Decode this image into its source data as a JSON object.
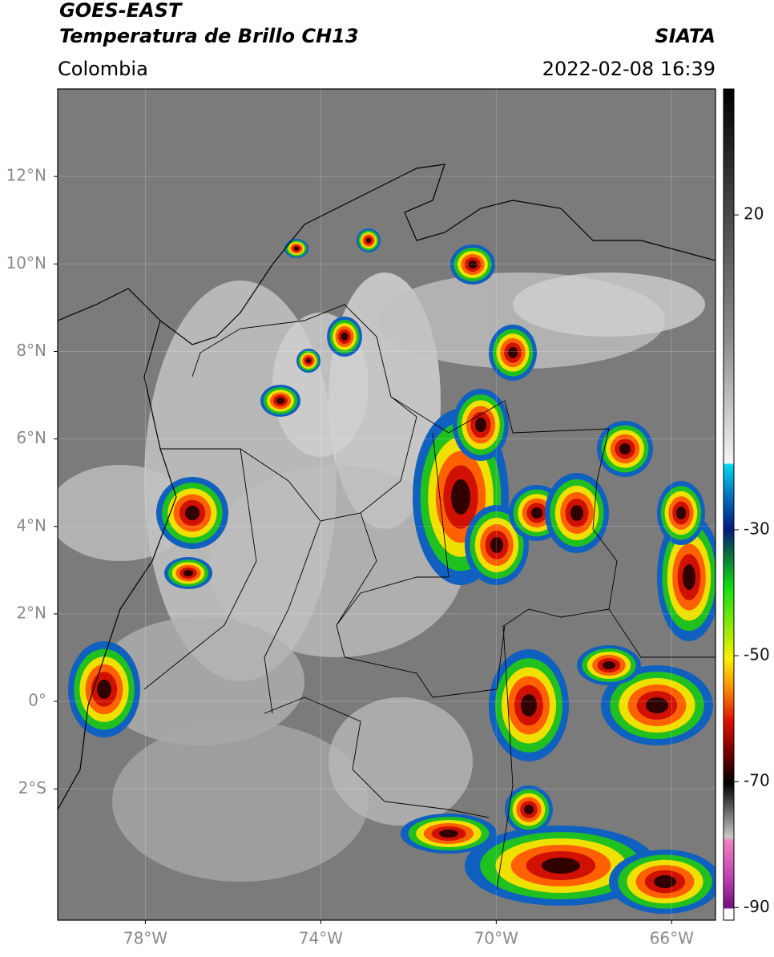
{
  "chart_data": {
    "type": "map",
    "title": "GOES-EAST",
    "subtitle": "Temperatura de Brillo CH13",
    "source": "SIATA",
    "region": "Colombia",
    "datetime": "2022-02-08 16:39",
    "xlim": [
      -80,
      -65
    ],
    "ylim": [
      -5,
      14
    ],
    "xticks": [
      {
        "value": -78,
        "label": "78°W"
      },
      {
        "value": -74,
        "label": "74°W"
      },
      {
        "value": -70,
        "label": "70°W"
      },
      {
        "value": -66,
        "label": "66°W"
      }
    ],
    "yticks": [
      {
        "value": 12,
        "label": "12°N"
      },
      {
        "value": 10,
        "label": "10°N"
      },
      {
        "value": 8,
        "label": "8°N"
      },
      {
        "value": 6,
        "label": "6°N"
      },
      {
        "value": 4,
        "label": "4°N"
      },
      {
        "value": 2,
        "label": "2°N"
      },
      {
        "value": 0,
        "label": "0°"
      },
      {
        "value": -2,
        "label": "2°S"
      }
    ],
    "grid": true,
    "colorbar": {
      "lim": [
        -92,
        40
      ],
      "ticks": [
        20,
        -30,
        -50,
        -70,
        -90
      ]
    }
  }
}
